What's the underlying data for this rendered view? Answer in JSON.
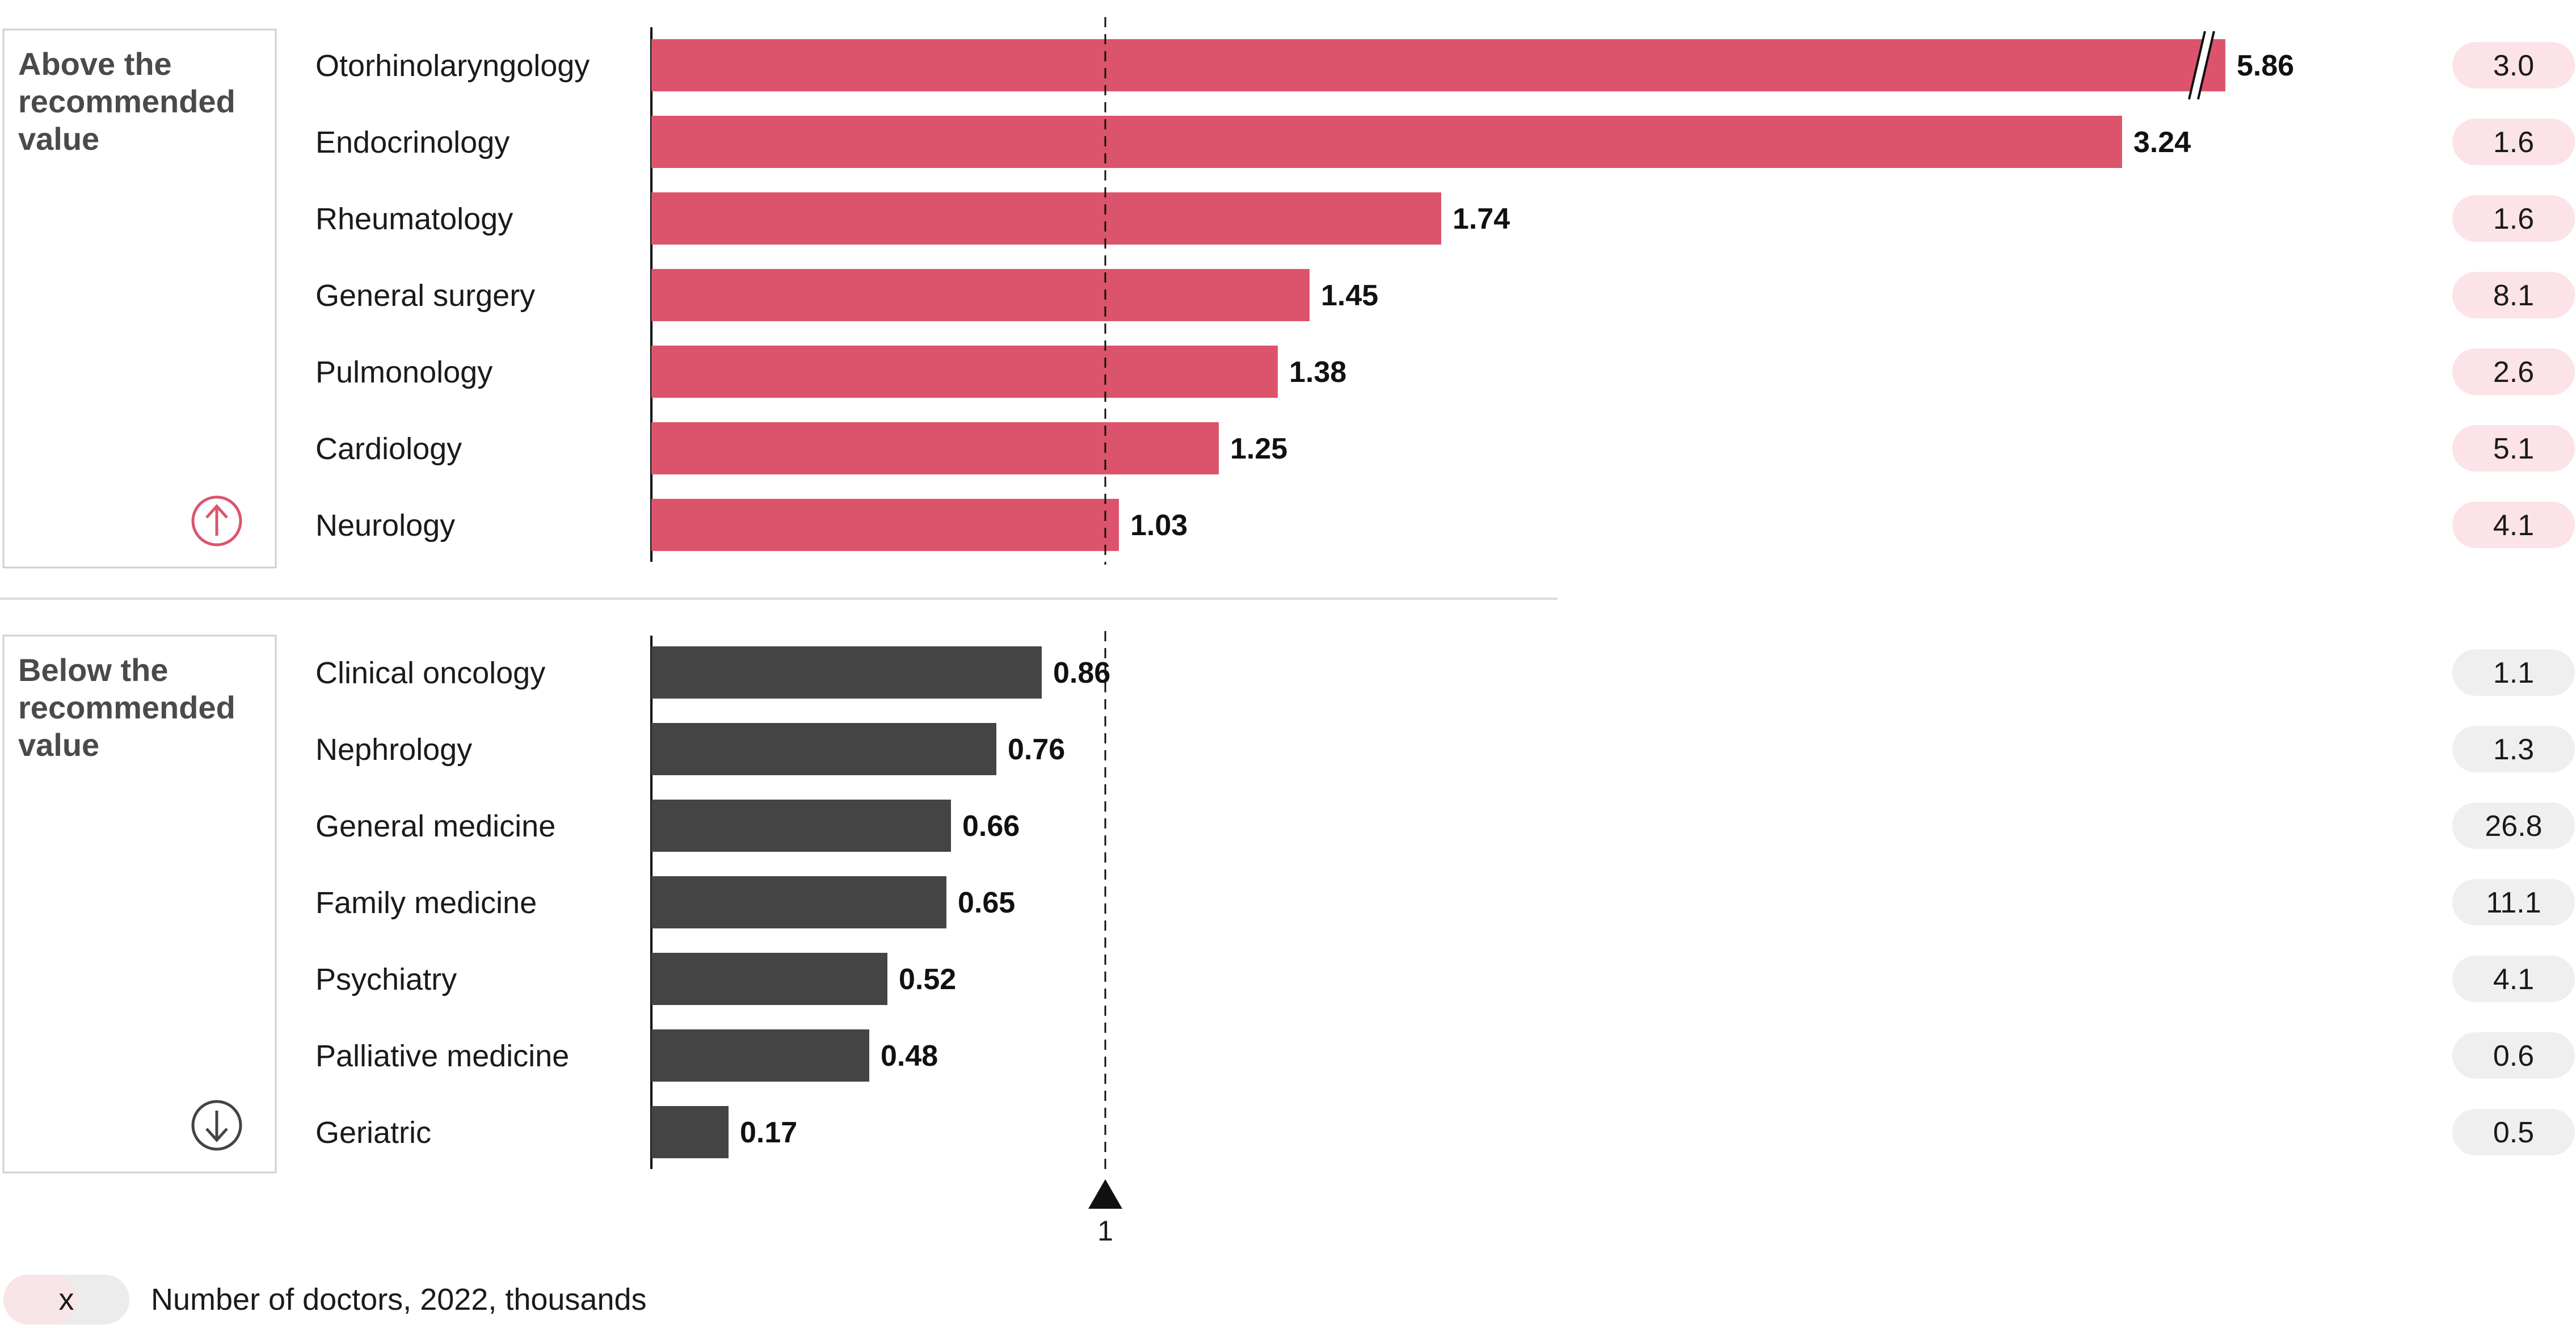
{
  "chart_data": {
    "type": "bar",
    "orientation": "horizontal",
    "reference_line": {
      "value": 1,
      "label": "1"
    },
    "colors": {
      "above": "#dc546c",
      "below": "#444444",
      "pill_above": "#fbe3e7",
      "pill_below": "#efefef",
      "box_border": "#cfcfcf",
      "up_icon": "#dc546c",
      "down_icon": "#444444"
    },
    "groups": [
      {
        "key": "above",
        "title_lines": [
          "Above the",
          "recommended",
          "value"
        ],
        "icon": "arrow-up-circle-icon",
        "categories": [
          "Otorhinolaryngology",
          "Endocrinology",
          "Rheumatology",
          "General surgery",
          "Pulmonology",
          "Cardiology",
          "Neurology"
        ],
        "values": [
          5.86,
          3.24,
          1.74,
          1.45,
          1.38,
          1.25,
          1.03
        ],
        "value_labels": [
          "5.86",
          "3.24",
          "1.74",
          "1.45",
          "1.38",
          "1.25",
          "1.03"
        ],
        "doctors_thousands": [
          "3.0",
          "1.6",
          "1.6",
          "8.1",
          "2.6",
          "5.1",
          "4.1"
        ],
        "axis_break_on": "Otorhinolaryngology"
      },
      {
        "key": "below",
        "title_lines": [
          "Below the",
          "recommended",
          "value"
        ],
        "icon": "arrow-down-circle-icon",
        "categories": [
          "Clinical oncology",
          "Nephrology",
          "General medicine",
          "Family medicine",
          "Psychiatry",
          "Palliative medicine",
          "Geriatric"
        ],
        "values": [
          0.86,
          0.76,
          0.66,
          0.65,
          0.52,
          0.48,
          0.17
        ],
        "value_labels": [
          "0.86",
          "0.76",
          "0.66",
          "0.65",
          "0.52",
          "0.48",
          "0.17"
        ],
        "doctors_thousands": [
          "1.1",
          "1.3",
          "26.8",
          "11.1",
          "4.1",
          "0.6",
          "0.5"
        ]
      }
    ],
    "legend": {
      "pill_text": "x",
      "label": "Number of doctors, 2022, thousands"
    }
  }
}
